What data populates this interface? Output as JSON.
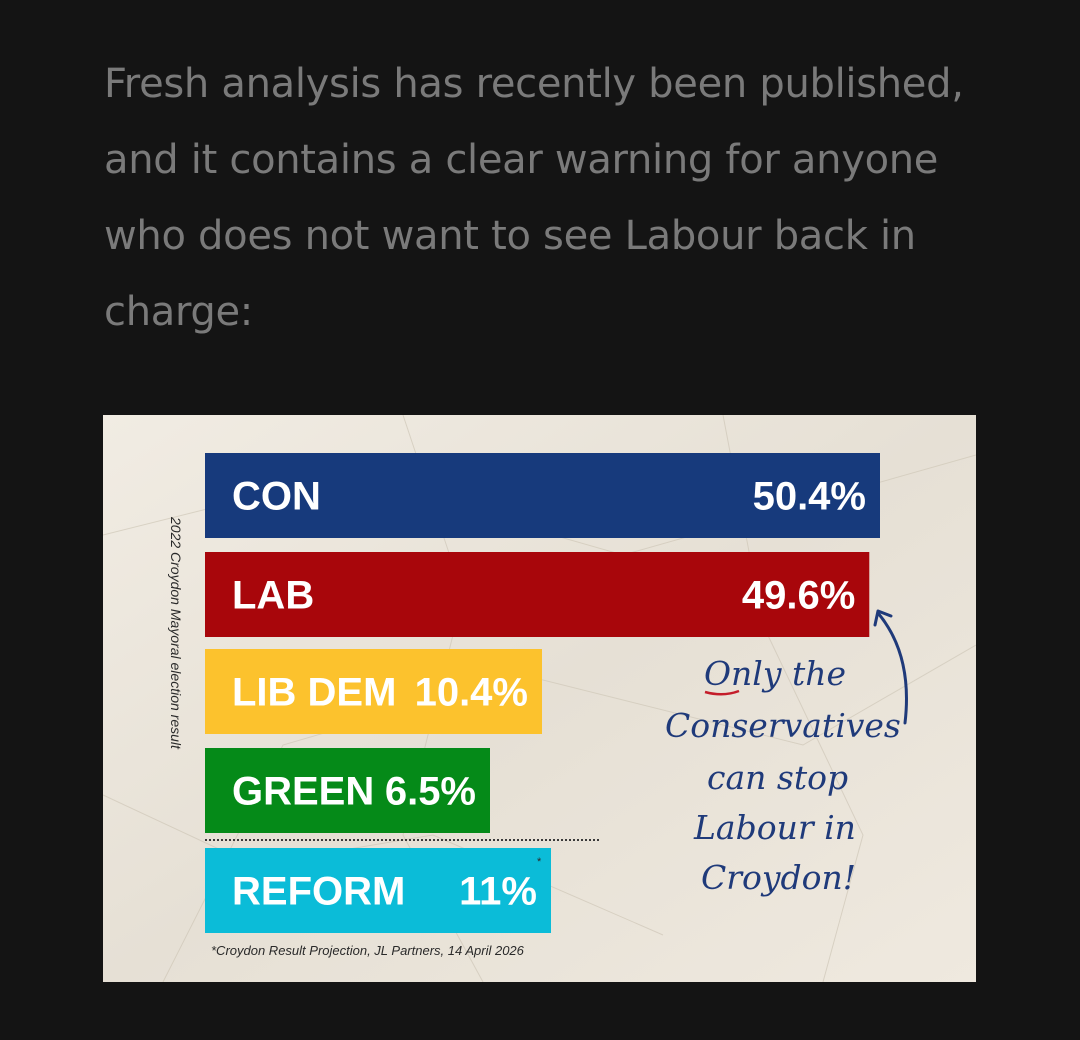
{
  "article": {
    "paragraph": "Fresh analysis has recently been published, and it contains a clear warning for anyone who does not want to see Labour back in charge:"
  },
  "chart_data": {
    "type": "bar",
    "orientation": "horizontal",
    "side_label": "2022 Croydon Mayoral election result",
    "categories": [
      "CON",
      "LAB",
      "LIB DEM",
      "GREEN",
      "REFORM"
    ],
    "values": [
      50.4,
      49.6,
      10.4,
      6.5,
      11
    ],
    "value_labels": [
      "50.4%",
      "49.6%",
      "10.4%",
      "6.5%",
      "11%"
    ],
    "colors": [
      "#173a7c",
      "#a8060b",
      "#fcc22d",
      "#058a18",
      "#0bbcd8"
    ],
    "projection_marker": "*",
    "annotation": [
      "Only the",
      "Conservatives",
      "can stop",
      "Labour in",
      "Croydon!"
    ],
    "footnote": "*Croydon Result Projection, JL Partners, 14 April 2026",
    "xlim": [
      0,
      50.4
    ]
  }
}
